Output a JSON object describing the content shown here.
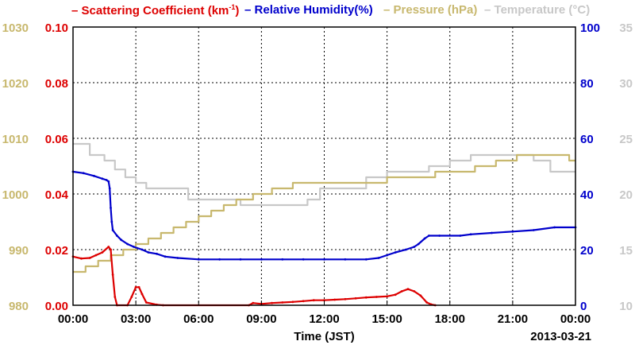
{
  "legend": [
    {
      "name": "Scattering Coefficient (km",
      "sup": "-1",
      "tail": ")",
      "color": "#dd0000"
    },
    {
      "name": "Relative Humidity(%)",
      "color": "#0000cc"
    },
    {
      "name": "Pressure (hPa)",
      "color": "#c8b86e"
    },
    {
      "name": "Temperature (°C)",
      "color": "#c8c8c8"
    }
  ],
  "xlabel": "Time (JST)",
  "date_label": "2013-03-21",
  "colors": {
    "scatter": "#dd0000",
    "rh": "#0000cc",
    "pressure": "#c8b86e",
    "temp": "#c8c8c8"
  },
  "chart_data": {
    "type": "line",
    "x_ticks": [
      "00:00",
      "03:00",
      "06:00",
      "09:00",
      "12:00",
      "15:00",
      "18:00",
      "21:00",
      "00:00"
    ],
    "xlim_hours": [
      0,
      24
    ],
    "axes": {
      "scatter": {
        "ticks": [
          "0.00",
          "0.02",
          "0.04",
          "0.06",
          "0.08",
          "0.10"
        ],
        "lim": [
          0,
          0.1
        ]
      },
      "pressure": {
        "ticks": [
          "980",
          "990",
          "1000",
          "1010",
          "1020",
          "1030"
        ],
        "lim": [
          980,
          1030
        ]
      },
      "rh": {
        "ticks": [
          "0",
          "20",
          "40",
          "60",
          "80",
          "100"
        ],
        "lim": [
          0,
          100
        ]
      },
      "temp": {
        "ticks": [
          "10",
          "15",
          "20",
          "25",
          "30",
          "35"
        ],
        "lim": [
          10,
          35
        ]
      }
    },
    "grid": true,
    "series": [
      {
        "name": "Scattering Coefficient (km-1)",
        "axis": "scatter",
        "color": "#dd0000",
        "points": [
          [
            0,
            0.0175
          ],
          [
            0.4,
            0.0168
          ],
          [
            0.8,
            0.017
          ],
          [
            1.1,
            0.018
          ],
          [
            1.4,
            0.019
          ],
          [
            1.7,
            0.021
          ],
          [
            1.8,
            0.02
          ],
          [
            1.9,
            0.011
          ],
          [
            2.0,
            0.003
          ],
          [
            2.1,
            0
          ],
          [
            2.6,
            0
          ],
          [
            2.8,
            0.003
          ],
          [
            3.0,
            0.0065
          ],
          [
            3.15,
            0.0065
          ],
          [
            3.3,
            0.004
          ],
          [
            3.5,
            0.001
          ],
          [
            4.0,
            0.0002
          ],
          [
            4.3,
            0
          ],
          [
            8.4,
            0
          ],
          [
            8.6,
            0.0008
          ],
          [
            9.0,
            0.0005
          ],
          [
            9.5,
            0.0008
          ],
          [
            10.0,
            0.001
          ],
          [
            10.5,
            0.0012
          ],
          [
            11.0,
            0.0015
          ],
          [
            11.5,
            0.0018
          ],
          [
            12.0,
            0.0018
          ],
          [
            12.5,
            0.002
          ],
          [
            13.0,
            0.0022
          ],
          [
            13.5,
            0.0025
          ],
          [
            14.0,
            0.0028
          ],
          [
            14.5,
            0.003
          ],
          [
            15.0,
            0.0032
          ],
          [
            15.4,
            0.0038
          ],
          [
            15.7,
            0.005
          ],
          [
            16.0,
            0.0058
          ],
          [
            16.3,
            0.005
          ],
          [
            16.6,
            0.0035
          ],
          [
            16.9,
            0.001
          ],
          [
            17.1,
            0.0003
          ],
          [
            17.3,
            0
          ]
        ]
      },
      {
        "name": "Relative Humidity(%)",
        "axis": "rh",
        "color": "#0000cc",
        "points": [
          [
            0,
            48
          ],
          [
            0.5,
            47.5
          ],
          [
            1.0,
            46.5
          ],
          [
            1.4,
            45.5
          ],
          [
            1.6,
            45
          ],
          [
            1.7,
            44.5
          ],
          [
            1.75,
            42
          ],
          [
            1.8,
            35
          ],
          [
            1.85,
            30
          ],
          [
            1.9,
            27
          ],
          [
            2.1,
            25
          ],
          [
            2.3,
            23.5
          ],
          [
            2.6,
            22
          ],
          [
            2.9,
            21
          ],
          [
            3.3,
            20
          ],
          [
            3.6,
            19
          ],
          [
            4.0,
            18.5
          ],
          [
            4.4,
            17.5
          ],
          [
            5.0,
            17
          ],
          [
            6.0,
            16.5
          ],
          [
            7.0,
            16.5
          ],
          [
            8.0,
            16.5
          ],
          [
            9.0,
            16.5
          ],
          [
            10.0,
            16.5
          ],
          [
            11.0,
            16.5
          ],
          [
            12.0,
            16.5
          ],
          [
            13.0,
            16.5
          ],
          [
            14.0,
            16.5
          ],
          [
            14.6,
            17
          ],
          [
            15.0,
            18
          ],
          [
            15.4,
            19
          ],
          [
            15.9,
            20
          ],
          [
            16.3,
            21
          ],
          [
            16.5,
            22
          ],
          [
            16.8,
            24
          ],
          [
            17.0,
            25
          ],
          [
            17.5,
            25
          ],
          [
            18.5,
            25
          ],
          [
            19.0,
            25.5
          ],
          [
            20.0,
            26
          ],
          [
            21.0,
            26.5
          ],
          [
            22.0,
            27
          ],
          [
            23.0,
            28
          ],
          [
            24.0,
            28
          ]
        ]
      },
      {
        "name": "Pressure (hPa)",
        "axis": "pressure",
        "color": "#c8b86e",
        "points": [
          [
            0,
            986
          ],
          [
            0.6,
            986
          ],
          [
            0.6,
            987
          ],
          [
            1.2,
            987
          ],
          [
            1.2,
            988
          ],
          [
            1.8,
            988
          ],
          [
            1.8,
            989
          ],
          [
            2.4,
            989
          ],
          [
            2.4,
            990
          ],
          [
            3.0,
            990
          ],
          [
            3.0,
            991
          ],
          [
            3.6,
            991
          ],
          [
            3.6,
            992
          ],
          [
            4.2,
            992
          ],
          [
            4.2,
            993
          ],
          [
            4.8,
            993
          ],
          [
            4.8,
            994
          ],
          [
            5.4,
            994
          ],
          [
            5.4,
            995
          ],
          [
            6.0,
            995
          ],
          [
            6.0,
            996
          ],
          [
            6.6,
            996
          ],
          [
            6.6,
            997
          ],
          [
            7.2,
            997
          ],
          [
            7.2,
            998
          ],
          [
            7.8,
            998
          ],
          [
            7.8,
            999
          ],
          [
            8.6,
            999
          ],
          [
            8.6,
            1000
          ],
          [
            9.5,
            1000
          ],
          [
            9.5,
            1001
          ],
          [
            10.5,
            1001
          ],
          [
            10.5,
            1002
          ],
          [
            15.0,
            1002
          ],
          [
            15.0,
            1003
          ],
          [
            17.3,
            1003
          ],
          [
            17.3,
            1004
          ],
          [
            19.2,
            1004
          ],
          [
            19.2,
            1005
          ],
          [
            20.2,
            1005
          ],
          [
            20.2,
            1006
          ],
          [
            21.2,
            1006
          ],
          [
            21.2,
            1007
          ],
          [
            23.7,
            1007
          ],
          [
            23.7,
            1006
          ],
          [
            24,
            1006
          ]
        ]
      },
      {
        "name": "Temperature (°C)",
        "axis": "temp",
        "color": "#c8c8c8",
        "points": [
          [
            0,
            24.5
          ],
          [
            0.8,
            24.5
          ],
          [
            0.8,
            23.5
          ],
          [
            1.5,
            23.5
          ],
          [
            1.5,
            23
          ],
          [
            2.0,
            23
          ],
          [
            2.0,
            22.2
          ],
          [
            2.5,
            22.2
          ],
          [
            2.5,
            21.5
          ],
          [
            3.0,
            21.5
          ],
          [
            3.0,
            21
          ],
          [
            3.5,
            21
          ],
          [
            3.5,
            20.5
          ],
          [
            5.5,
            20.5
          ],
          [
            5.5,
            19.5
          ],
          [
            8.0,
            19.5
          ],
          [
            8.0,
            19
          ],
          [
            11.2,
            19
          ],
          [
            11.2,
            19.5
          ],
          [
            11.8,
            19.5
          ],
          [
            11.8,
            20.5
          ],
          [
            14.0,
            20.5
          ],
          [
            14.0,
            21.5
          ],
          [
            15.0,
            21.5
          ],
          [
            15.0,
            22
          ],
          [
            17.0,
            22
          ],
          [
            17.0,
            22.5
          ],
          [
            18.0,
            22.5
          ],
          [
            18.0,
            23
          ],
          [
            19.0,
            23
          ],
          [
            19.0,
            23.5
          ],
          [
            22.0,
            23.5
          ],
          [
            22.0,
            23
          ],
          [
            22.8,
            23
          ],
          [
            22.8,
            22
          ],
          [
            24,
            22
          ]
        ]
      }
    ]
  }
}
